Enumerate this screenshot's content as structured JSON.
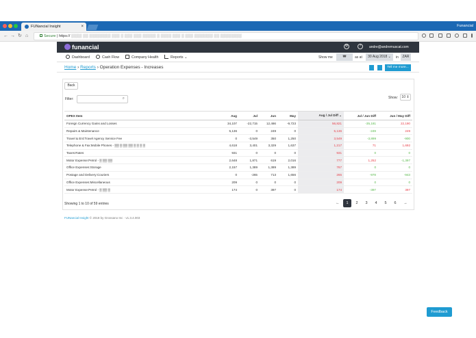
{
  "browser": {
    "tab_title": "FUNancial Insight",
    "tab_close": "×",
    "profile_name": "Funancial",
    "secure_label": "Secure",
    "url": "https://"
  },
  "app": {
    "brand": "funancial",
    "gear_glyph": "⚙",
    "help_glyph": "?",
    "user_email": "andre@andremuscat.com"
  },
  "menu": {
    "items": [
      "Dashboard",
      "Cash Flow",
      "Company Health",
      "Reports ⌄"
    ],
    "show_me_label": "Show me",
    "show_me_value": "₩",
    "as_at_label": "as at",
    "date_value": "30 Aug 2018 ⌄",
    "in_label": "in",
    "currency": "ZAR"
  },
  "breadcrumb": {
    "home": "Home",
    "sep1": " › ",
    "reports": "Reports",
    "sep2": " › ",
    "current": "Operation Expenses - Increases",
    "tell_me": "Tell me more..."
  },
  "controls": {
    "back": "Back",
    "filter_label": "Filter:",
    "search_icon": "⌕",
    "show_label": "Show:",
    "show_value": "10 ⇕"
  },
  "table": {
    "headers": [
      "OPEX Item",
      "Aug",
      "Jul",
      "Jun",
      "May",
      "Aug / Jul Diff ⌄",
      "Jul / Jun Diff",
      "Jun / May Diff"
    ],
    "rows": [
      [
        "Foreign Currency Gains and Losses",
        "34,107",
        "-22,715",
        "12,466",
        "-9,723",
        "56,821",
        "-35,181",
        "22,190"
      ],
      [
        "Repairs & Maintenance",
        "5,136",
        "0",
        "249",
        "0",
        "5,136",
        "-249",
        "249"
      ],
      [
        "Travel & Ent:Travel Agency Service Fee",
        "0",
        "-3,549",
        "350",
        "1,250",
        "3,549",
        "-3,899",
        "-900"
      ],
      [
        "Telephone & Fax:Mobile Phones - ▒▒ ▒ ▒▒ ▒▒ ▒ ▒ ▒ ▒",
        "4,618",
        "3,401",
        "3,329",
        "1,637",
        "1,217",
        "71",
        "1,692"
      ],
      [
        "Taxes:Rates",
        "931",
        "0",
        "0",
        "0",
        "931",
        "0",
        "0"
      ],
      [
        "Motor Expense:Petrol - ▒ ▒▒ ▒▒",
        "2,648",
        "1,871",
        "619",
        "2,016",
        "777",
        "1,252",
        "-1,397"
      ],
      [
        "Office Expenses:Storage",
        "2,157",
        "1,389",
        "1,389",
        "1,389",
        "767",
        "0",
        "0"
      ],
      [
        "Postage and Delivery:Couriers",
        "0",
        "-265",
        "713",
        "1,656",
        "265",
        "-978",
        "-943"
      ],
      [
        "Office Expenses:Miscellaneous",
        "209",
        "0",
        "0",
        "0",
        "209",
        "0",
        "0"
      ],
      [
        "Motor Expense:Petrol - ▒ ▒▒ ▒",
        "174",
        "0",
        "397",
        "0",
        "174",
        "-397",
        "397"
      ]
    ],
    "diff_colors": [
      [
        "neg",
        "pos",
        "neg"
      ],
      [
        "neg",
        "pos",
        "neg"
      ],
      [
        "neg",
        "pos",
        "pos"
      ],
      [
        "neg",
        "neg",
        "neg"
      ],
      [
        "neg",
        "pos",
        "pos"
      ],
      [
        "neg",
        "neg",
        "pos"
      ],
      [
        "neg",
        "pos",
        "pos"
      ],
      [
        "neg",
        "pos",
        "pos"
      ],
      [
        "neg",
        "pos",
        "pos"
      ],
      [
        "neg",
        "pos",
        "neg"
      ]
    ]
  },
  "footer_bar": {
    "info": "Showing 1 to 10 of 59 entries",
    "prev": "←",
    "pages": [
      "1",
      "2",
      "3",
      "4",
      "5",
      "6"
    ],
    "next": "→",
    "active_page": "1"
  },
  "footer": {
    "brand": "FUNancial Insight",
    "rest": " © 2018 by Grossano Inc · v1.3.4.003"
  },
  "feedback": "Feedback",
  "colors": {
    "tabbar": "#1c68b4",
    "topnav": "#2f353e",
    "accent": "#1f9bd1",
    "negative": "#e8404a",
    "positive": "#57b84a"
  }
}
